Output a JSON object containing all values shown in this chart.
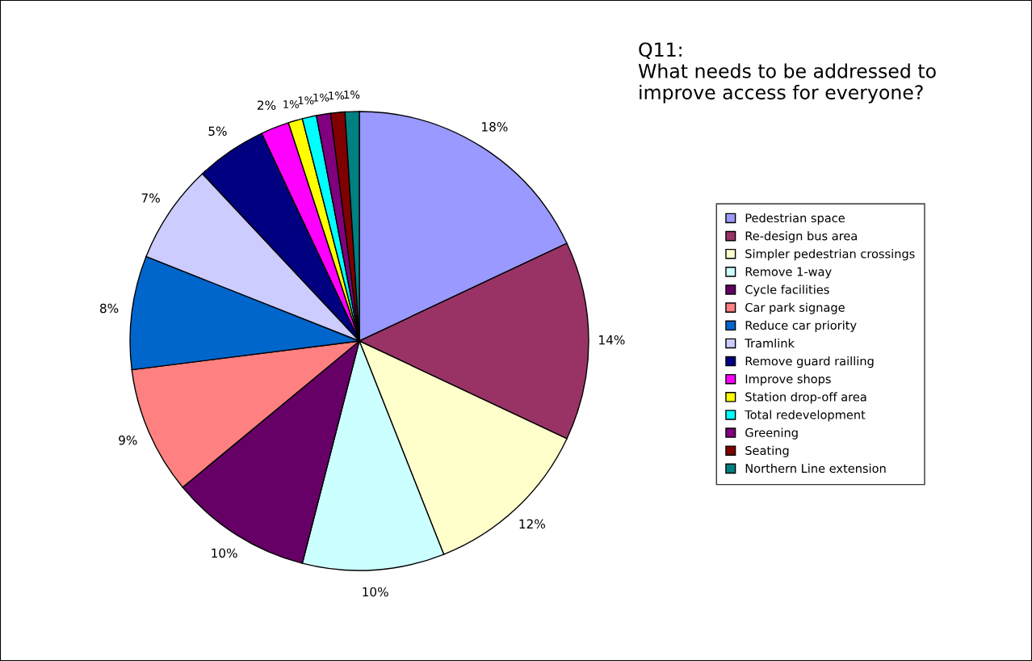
{
  "chart_data": {
    "type": "pie",
    "title": "Q11:\nWhat needs to be addressed to\nimprove access for everyone?",
    "categories": [
      "Pedestrian space",
      "Re-design bus area",
      "Simpler pedestrian crossings",
      "Remove 1-way",
      "Cycle facilities",
      "Car park signage",
      "Reduce car priority",
      "Tramlink",
      "Remove guard railling",
      "Improve shops",
      "Station drop-off area",
      "Total redevelopment",
      "Greening",
      "Seating",
      "Northern Line extension"
    ],
    "values": [
      18,
      14,
      12,
      10,
      10,
      9,
      8,
      7,
      5,
      2,
      1,
      1,
      1,
      1,
      1
    ],
    "colors": [
      "#9999ff",
      "#993366",
      "#ffffcc",
      "#ccffff",
      "#660066",
      "#ff8080",
      "#0066cc",
      "#ccccff",
      "#000080",
      "#ff00ff",
      "#ffff00",
      "#00ffff",
      "#800080",
      "#800000",
      "#008080"
    ],
    "value_labels": [
      "18%",
      "14%",
      "12%",
      "10%",
      "10%",
      "9%",
      "8%",
      "7%",
      "5%",
      "2%",
      "1%",
      "1%",
      "1%",
      "1%",
      "1%"
    ],
    "legend": "right"
  }
}
